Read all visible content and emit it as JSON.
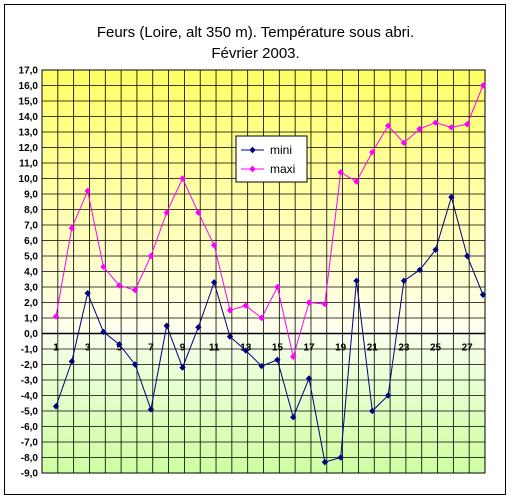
{
  "chart_data": {
    "type": "line",
    "title_line1": "Feurs (Loire, alt 350 m). Température sous abri.",
    "title_line2": "Février 2003.",
    "xlabel": "",
    "ylabel": "",
    "ylim": [
      -9,
      17
    ],
    "ytick_step": 1,
    "ytick_labels": [
      "-9,0",
      "-8,0",
      "-7,0",
      "-6,0",
      "-5,0",
      "-4,0",
      "-3,0",
      "-2,0",
      "-1,0",
      "0,0",
      "1,0",
      "2,0",
      "3,0",
      "4,0",
      "5,0",
      "6,0",
      "7,0",
      "8,0",
      "9,0",
      "10,0",
      "11,0",
      "12,0",
      "13,0",
      "14,0",
      "15,0",
      "16,0",
      "17,0"
    ],
    "xlim": [
      1,
      28
    ],
    "x": [
      1,
      2,
      3,
      4,
      5,
      6,
      7,
      8,
      9,
      10,
      11,
      12,
      13,
      14,
      15,
      16,
      17,
      18,
      19,
      20,
      21,
      22,
      23,
      24,
      25,
      26,
      27,
      28
    ],
    "xtick_labels": [
      "1",
      "3",
      "5",
      "7",
      "9",
      "11",
      "13",
      "15",
      "17",
      "19",
      "21",
      "23",
      "25",
      "27"
    ],
    "xtick_values": [
      1,
      3,
      5,
      7,
      9,
      11,
      13,
      15,
      17,
      19,
      21,
      23,
      25,
      27
    ],
    "grid": true,
    "legend_placement": "center-top",
    "series": [
      {
        "name": "mini",
        "color": "#000080",
        "marker": "diamond",
        "values": [
          -4.7,
          -1.8,
          2.6,
          0.1,
          -0.7,
          -2.0,
          -4.9,
          0.5,
          -2.2,
          0.4,
          3.3,
          -0.2,
          -1.1,
          -2.1,
          -1.7,
          -5.4,
          -2.9,
          -8.3,
          -8.0,
          3.4,
          -5.0,
          -4.0,
          3.4,
          4.1,
          5.4,
          8.8,
          5.0,
          2.5
        ]
      },
      {
        "name": "maxi",
        "color": "#ff00ff",
        "marker": "diamond",
        "values": [
          1.1,
          6.8,
          9.2,
          4.3,
          3.1,
          2.8,
          5.0,
          7.8,
          10.0,
          7.8,
          5.7,
          1.5,
          1.8,
          1.0,
          3.0,
          -1.5,
          2.0,
          1.9,
          10.4,
          9.8,
          11.7,
          13.4,
          12.3,
          13.2,
          13.6,
          13.3,
          13.5,
          16.0
        ]
      }
    ],
    "colors": {
      "upper_band_top": "#ffff66",
      "upper_band_bottom": "#fffff0",
      "lower_band_top": "#f8ffec",
      "lower_band_bottom": "#ccffa0",
      "grid": "#000000"
    }
  }
}
